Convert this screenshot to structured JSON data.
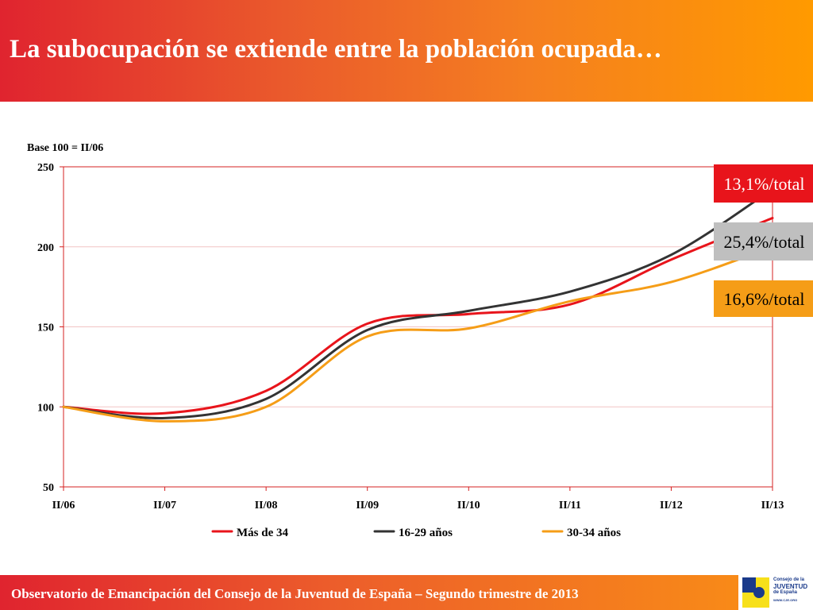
{
  "header": {
    "title": "La subocupación se extiende entre la población ocupada…"
  },
  "footer": {
    "text": "Observatorio de Emancipación del Consejo de la Juventud de España – Segundo trimestre de 2013"
  },
  "logo": {
    "line1": "Consejo de la",
    "line2": "JUVENTUD",
    "line3": "de España",
    "url": "WWW.CJE.ORG"
  },
  "colors": {
    "mas34": "#e8141b",
    "age1629": "#333333",
    "age3034": "#f59d17"
  },
  "chart_data": {
    "type": "line",
    "base_note": "Base 100 = II/06",
    "x": [
      "II/06",
      "II/07",
      "II/08",
      "II/09",
      "II/10",
      "II/11",
      "II/12",
      "II/13"
    ],
    "ylim": [
      50,
      250
    ],
    "yticks": [
      50,
      100,
      150,
      200,
      250
    ],
    "grid": true,
    "legend_position": "bottom",
    "series": [
      {
        "name": "Más de 34",
        "color": "#e8141b",
        "values": [
          100,
          96,
          110,
          152,
          158,
          164,
          192,
          218
        ]
      },
      {
        "name": "16-29 años",
        "color": "#333333",
        "values": [
          100,
          93,
          105,
          148,
          160,
          172,
          195,
          236
        ]
      },
      {
        "name": "30-34 años",
        "color": "#f59d17",
        "values": [
          100,
          91,
          100,
          144,
          149,
          166,
          178,
          200
        ]
      }
    ],
    "annotations": [
      {
        "text": "13,1%/total",
        "bg": "#e8141b",
        "fg": "#ffffff"
      },
      {
        "text": "25,4%/total",
        "bg": "#bfbfbf",
        "fg": "#000000"
      },
      {
        "text": "16,6%/total",
        "bg": "#f59d17",
        "fg": "#000000"
      }
    ]
  }
}
